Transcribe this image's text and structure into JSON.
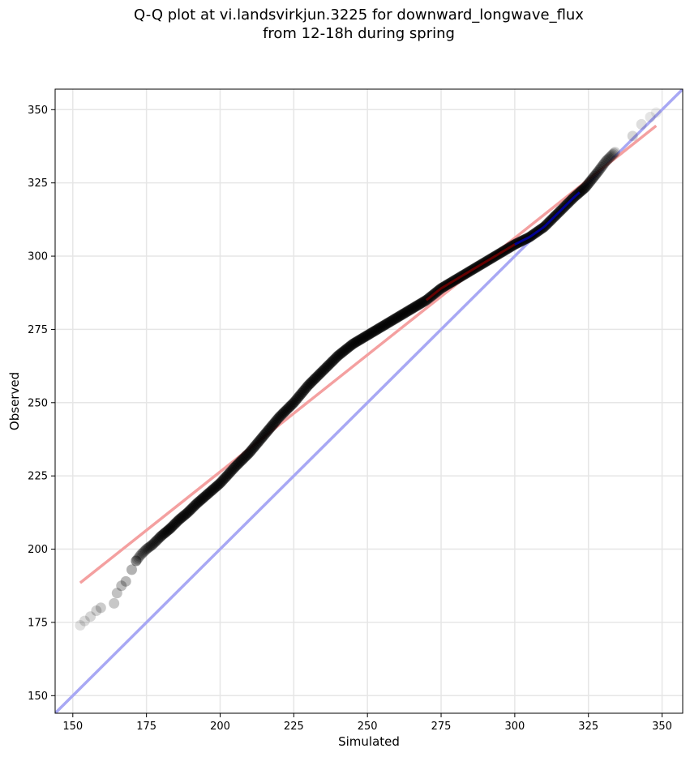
{
  "chart_data": {
    "type": "scatter",
    "title": "Q-Q plot at vi.landsvirkjun.3225 for downward_longwave_flux",
    "subtitle": "from 12-18h during spring",
    "xlabel": "Simulated",
    "ylabel": "Observed",
    "xlim": [
      144,
      357
    ],
    "ylim": [
      144,
      357
    ],
    "xticks": [
      150,
      175,
      200,
      225,
      250,
      275,
      300,
      325,
      350
    ],
    "yticks": [
      150,
      175,
      200,
      225,
      250,
      275,
      300,
      325,
      350
    ],
    "grid": true,
    "colors": {
      "points": "#000000",
      "fit_line": "#f4a0a0",
      "identity_line": "#a8a8f4",
      "center_segment": "#8b0000",
      "upper_segment": "#0000cd"
    },
    "quantile_anchors": {
      "x": [
        152.5,
        154.0,
        156.0,
        158.0,
        159.5,
        164.0,
        165.0,
        166.5,
        168.0,
        170.0,
        171.5,
        173.0,
        175.0,
        177.0,
        180.0,
        183.0,
        186.0,
        189.0,
        192.0,
        196.0,
        200.0,
        205.0,
        210.0,
        215.0,
        220.0,
        225.0,
        230.0,
        235.0,
        240.0,
        245.0,
        250.0,
        255.0,
        260.0,
        265.0,
        270.0,
        275.0,
        280.0,
        285.0,
        290.0,
        295.0,
        300.0,
        305.0,
        310.0,
        315.0,
        320.0,
        324.0,
        326.0,
        328.0,
        331.0,
        334.0,
        336.0,
        340.0,
        343.0,
        346.0,
        348.0
      ],
      "y": [
        174.0,
        175.5,
        177.0,
        179.0,
        180.0,
        181.5,
        185.0,
        187.5,
        189.0,
        193.0,
        196.0,
        198.0,
        200.0,
        201.5,
        204.5,
        207.0,
        210.0,
        212.5,
        215.5,
        219.0,
        222.5,
        228.0,
        233.0,
        239.0,
        245.0,
        250.0,
        256.0,
        261.0,
        266.0,
        270.0,
        273.0,
        276.0,
        279.0,
        282.0,
        285.0,
        289.0,
        292.0,
        295.0,
        298.0,
        301.0,
        304.0,
        306.5,
        310.0,
        315.0,
        320.0,
        323.5,
        326.0,
        328.5,
        332.5,
        335.5,
        338.5,
        341.0,
        345.0,
        347.5,
        349.0
      ]
    },
    "fit_line": {
      "x": [
        152.5,
        348.0
      ],
      "y": [
        188.5,
        344.5
      ]
    },
    "identity_line": {
      "x": [
        144,
        357
      ],
      "y": [
        144,
        357
      ]
    },
    "center_segment": {
      "x": [
        270.0,
        300.0
      ]
    },
    "upper_segment": {
      "x": [
        300.0,
        322.0
      ]
    }
  }
}
